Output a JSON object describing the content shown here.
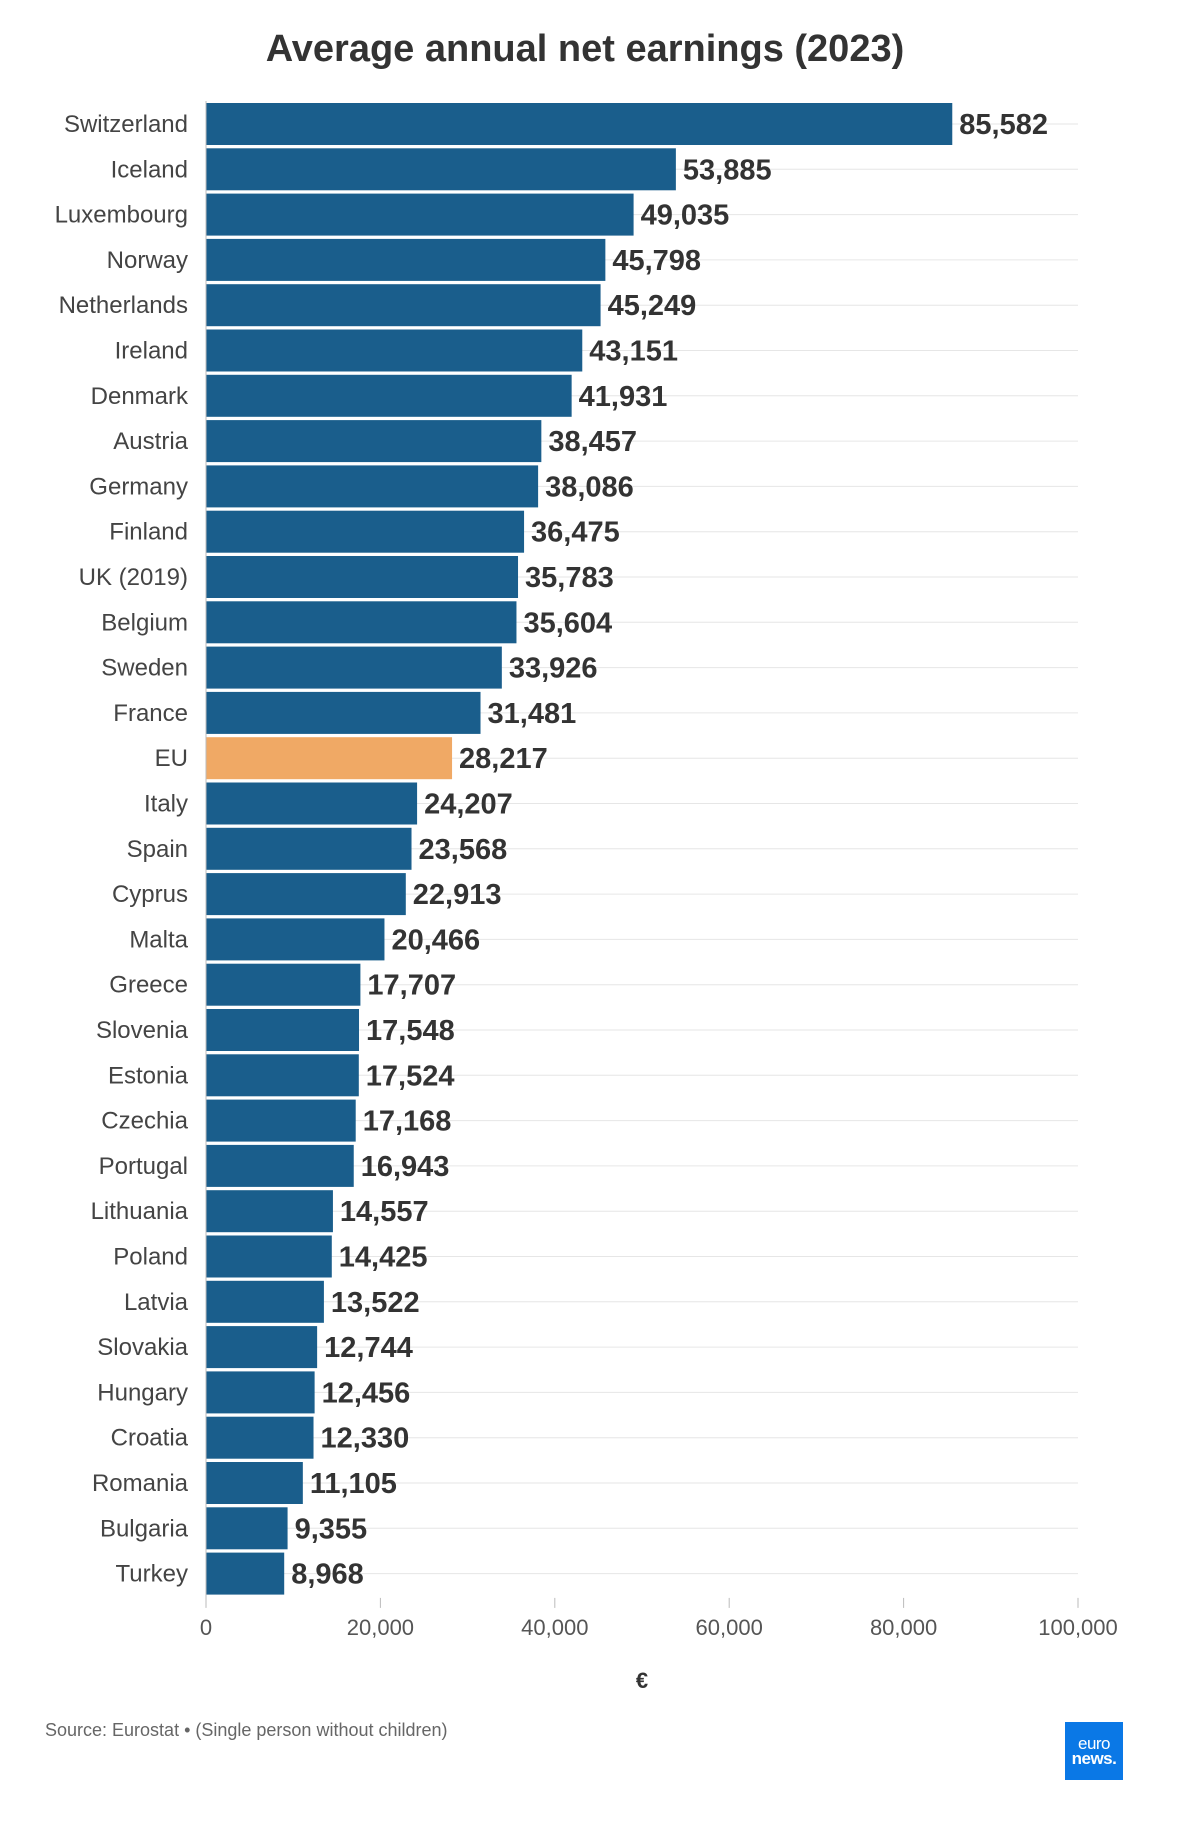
{
  "chart_data": {
    "type": "bar",
    "orientation": "horizontal",
    "title": "Average annual net earnings (2023)",
    "xlabel": "€",
    "ylabel": "",
    "xlim": [
      0,
      100000
    ],
    "ticks": [
      {
        "value": 0,
        "label": "0"
      },
      {
        "value": 20000,
        "label": "20,000"
      },
      {
        "value": 40000,
        "label": "40,000"
      },
      {
        "value": 60000,
        "label": "60,000"
      },
      {
        "value": 80000,
        "label": "80,000"
      },
      {
        "value": 100000,
        "label": "100,000"
      }
    ],
    "grid": true,
    "categories": [
      "Switzerland",
      "Iceland",
      "Luxembourg",
      "Norway",
      "Netherlands",
      "Ireland",
      "Denmark",
      "Austria",
      "Germany",
      "Finland",
      "UK (2019)",
      "Belgium",
      "Sweden",
      "France",
      "EU",
      "Italy",
      "Spain",
      "Cyprus",
      "Malta",
      "Greece",
      "Slovenia",
      "Estonia",
      "Czechia",
      "Portugal",
      "Lithuania",
      "Poland",
      "Latvia",
      "Slovakia",
      "Hungary",
      "Croatia",
      "Romania",
      "Bulgaria",
      "Turkey"
    ],
    "values": [
      85582,
      53885,
      49035,
      45798,
      45249,
      43151,
      41931,
      38457,
      38086,
      36475,
      35783,
      35604,
      33926,
      31481,
      28217,
      24207,
      23568,
      22913,
      20466,
      17707,
      17548,
      17524,
      17168,
      16943,
      14557,
      14425,
      13522,
      12744,
      12456,
      12330,
      11105,
      9355,
      8968
    ],
    "value_labels": [
      "85,582",
      "53,885",
      "49,035",
      "45,798",
      "45,249",
      "43,151",
      "41,931",
      "38,457",
      "38,086",
      "36,475",
      "35,783",
      "35,604",
      "33,926",
      "31,481",
      "28,217",
      "24,207",
      "23,568",
      "22,913",
      "20,466",
      "17,707",
      "17,548",
      "17,524",
      "17,168",
      "16,943",
      "14,557",
      "14,425",
      "13,522",
      "12,744",
      "12,456",
      "12,330",
      "11,105",
      "9,355",
      "8,968"
    ],
    "highlight": "EU",
    "colors": {
      "bar": "#1a5e8c",
      "highlight": "#f0a965",
      "grid": "#e6e6e6"
    }
  },
  "footer": {
    "source": "Source: Eurostat • (Single person without children)",
    "logo_line1": "euro",
    "logo_line2": "news."
  }
}
